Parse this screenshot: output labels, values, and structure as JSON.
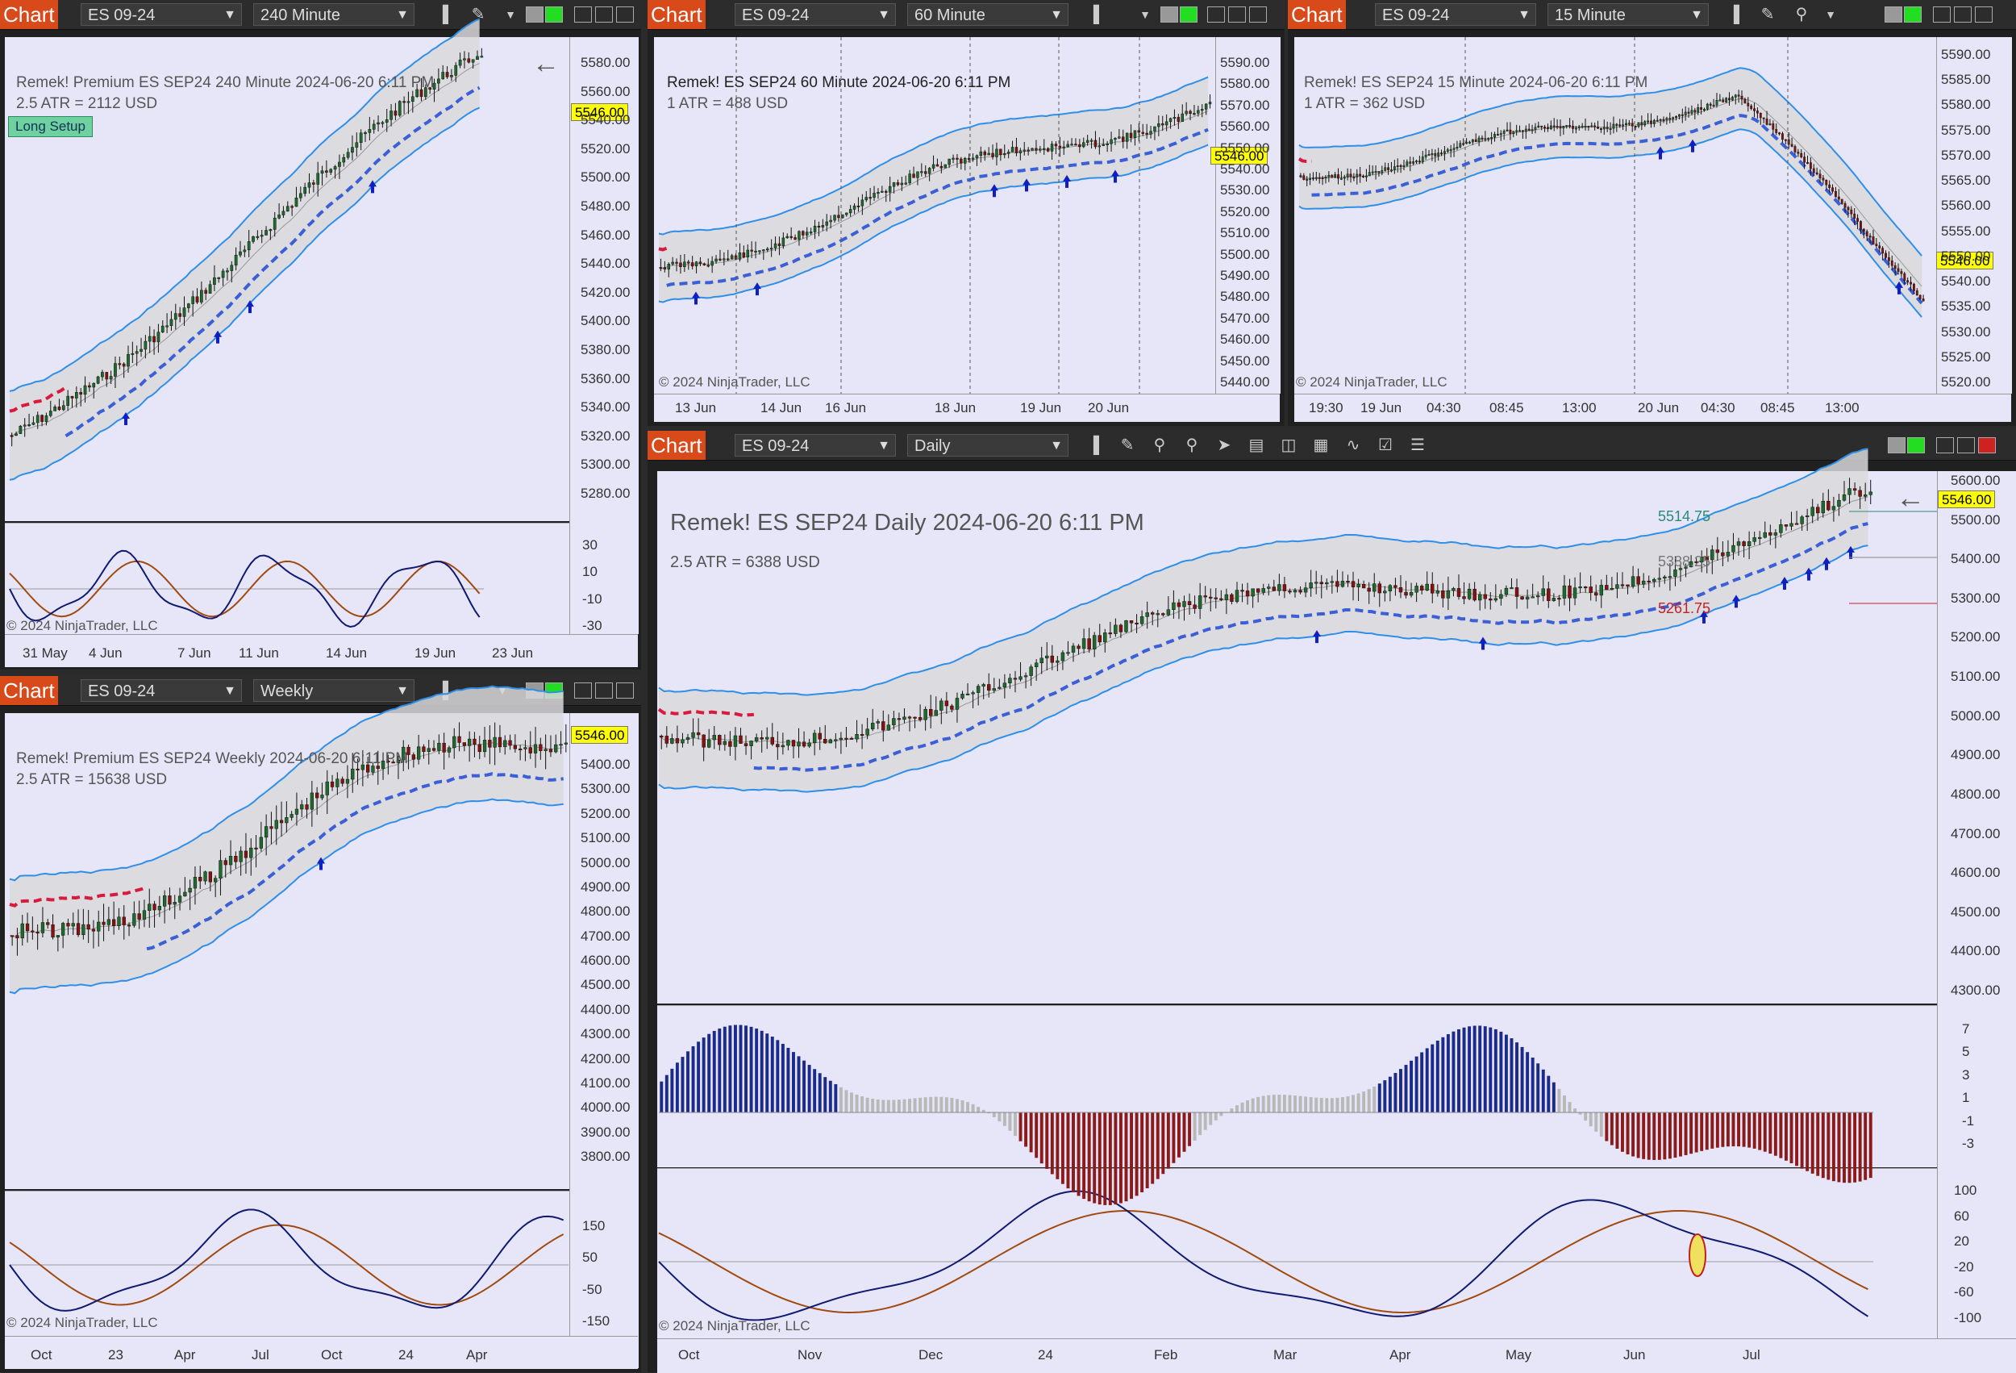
{
  "windows": {
    "w240": {
      "tab": "Chart",
      "instrument": "ES 09-24",
      "interval": "240 Minute",
      "header_line1": "Remek!  Premium  ES SEP24  240 Minute  2024-06-20 6:11 PM",
      "header_line2": "2.5 ATR = 2112 USD",
      "setup_badge": "Long Setup",
      "last_price": "5546.00",
      "y_labels": [
        "5580.00",
        "5560.00",
        "5540.00",
        "5520.00",
        "5500.00",
        "5480.00",
        "5460.00",
        "5440.00",
        "5420.00",
        "5400.00",
        "5380.00",
        "5360.00",
        "5340.00",
        "5320.00",
        "5300.00",
        "5280.00"
      ],
      "osc_labels": [
        "30",
        "10",
        "-10",
        "-30"
      ],
      "x_labels": [
        "31 May",
        "4 Jun",
        "7 Jun",
        "11 Jun",
        "14 Jun",
        "19 Jun",
        "23 Jun"
      ],
      "copyright": "© 2024 NinjaTrader, LLC"
    },
    "w60": {
      "tab": "Chart",
      "instrument": "ES 09-24",
      "interval": "60 Minute",
      "header_line1": "Remek!  ES SEP24  60 Minute  2024-06-20 6:11 PM",
      "header_line2": "1 ATR = 488 USD",
      "last_price": "5546.00",
      "y_labels": [
        "5590.00",
        "5580.00",
        "5570.00",
        "5560.00",
        "5550.00",
        "5540.00",
        "5530.00",
        "5520.00",
        "5510.00",
        "5500.00",
        "5490.00",
        "5480.00",
        "5470.00",
        "5460.00",
        "5450.00",
        "5440.00"
      ],
      "x_labels": [
        "13 Jun",
        "14 Jun",
        "16 Jun",
        "18 Jun",
        "19 Jun",
        "20 Jun"
      ],
      "copyright": "© 2024 NinjaTrader, LLC"
    },
    "w15": {
      "tab": "Chart",
      "instrument": "ES 09-24",
      "interval": "15 Minute",
      "header_line1": "Remek!  ES SEP24  15 Minute  2024-06-20 6:11 PM",
      "header_line2": "1 ATR = 362 USD",
      "last_price": "5546.00",
      "y_labels": [
        "5590.00",
        "5585.00",
        "5580.00",
        "5575.00",
        "5570.00",
        "5565.00",
        "5560.00",
        "5555.00",
        "5550.00",
        "5540.00",
        "5535.00",
        "5530.00",
        "5525.00",
        "5520.00"
      ],
      "x_labels": [
        "19:30",
        "19 Jun",
        "04:30",
        "08:45",
        "13:00",
        "20 Jun",
        "04:30",
        "08:45",
        "13:00"
      ],
      "copyright": "© 2024 NinjaTrader, LLC"
    },
    "wweek": {
      "tab": "Chart",
      "instrument": "ES 09-24",
      "interval": "Weekly",
      "header_line1": "Remek!  Premium  ES SEP24  Weekly  2024-06-20 6:11 PM",
      "header_line2": "2.5 ATR = 15638 USD",
      "last_price": "5546.00",
      "y_labels": [
        "5400.00",
        "5300.00",
        "5200.00",
        "5100.00",
        "5000.00",
        "4900.00",
        "4800.00",
        "4700.00",
        "4600.00",
        "4500.00",
        "4400.00",
        "4300.00",
        "4200.00",
        "4100.00",
        "4000.00",
        "3900.00",
        "3800.00"
      ],
      "osc_labels": [
        "150",
        "50",
        "-50",
        "-150"
      ],
      "x_labels": [
        "Oct",
        "23",
        "Apr",
        "Jul",
        "Oct",
        "24",
        "Apr"
      ],
      "copyright": "© 2024 NinjaTrader, LLC"
    },
    "wday": {
      "tab": "Chart",
      "instrument": "ES 09-24",
      "interval": "Daily",
      "header_line1": "Remek!  ES SEP24  Daily  2024-06-20 6:11 PM",
      "header_line2": "2.5 ATR = 6388 USD",
      "last_price": "5546.00",
      "level_labels": [
        "5514.75",
        "5388.25",
        "5261.75"
      ],
      "y_labels": [
        "5600.00",
        "5500.00",
        "5400.00",
        "5300.00",
        "5200.00",
        "5100.00",
        "5000.00",
        "4900.00",
        "4800.00",
        "4700.00",
        "4600.00",
        "4500.00",
        "4400.00",
        "4300.00"
      ],
      "hist_labels": [
        "7",
        "5",
        "3",
        "1",
        "-1",
        "-3"
      ],
      "osc_labels": [
        "100",
        "60",
        "20",
        "-20",
        "-60",
        "-100"
      ],
      "x_labels": [
        "Oct",
        "Nov",
        "Dec",
        "24",
        "Feb",
        "Mar",
        "Apr",
        "May",
        "Jun",
        "Jul"
      ],
      "copyright": "© 2024 NinjaTrader, LLC"
    }
  },
  "colors": {
    "tab": "#d94a1b",
    "plot_bg": "#e6e6f8",
    "band": "#2f8fe8",
    "trail": "#3a5fd6",
    "trail_short": "#d81b3c",
    "neutral": "#f0e000",
    "hist_up": "#1c2a8c",
    "hist_down": "#8b1a1a"
  },
  "icons": [
    "chevron-down-icon",
    "bar-style-icon",
    "draw-tool-icon",
    "zoom-icon",
    "pointer-icon",
    "properties-icon",
    "back-arrow-icon"
  ]
}
